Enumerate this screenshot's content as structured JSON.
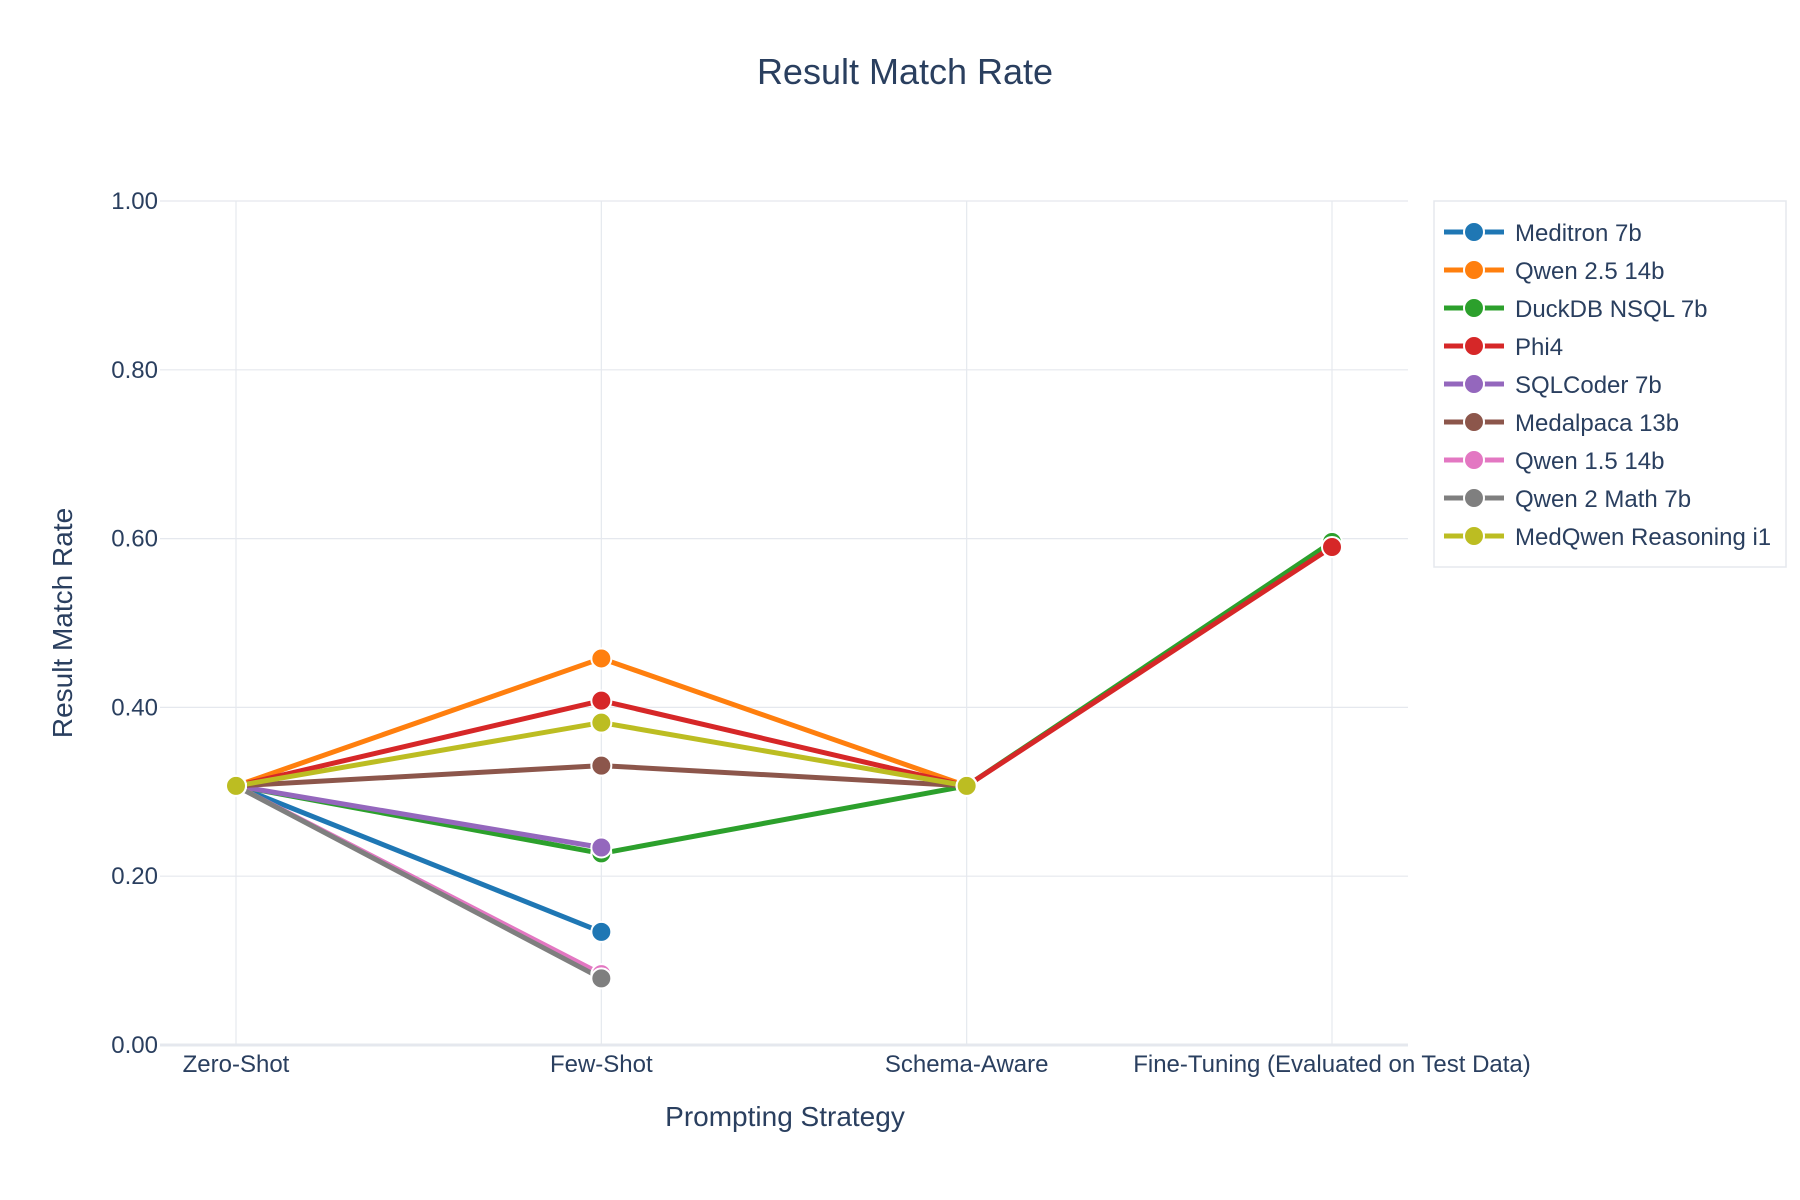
{
  "chart_data": {
    "type": "line",
    "title": "Result Match Rate",
    "xlabel": "Prompting Strategy",
    "ylabel": "Result Match Rate",
    "categories": [
      "Zero-Shot",
      "Few-Shot",
      "Schema-Aware",
      "Fine-Tuning (Evaluated on Test Data)"
    ],
    "ylim": [
      0,
      1
    ],
    "yticks": [
      "0.00",
      "0.20",
      "0.40",
      "0.60",
      "0.80",
      "1.00"
    ],
    "grid": true,
    "legend_position": "top-right",
    "series": [
      {
        "name": "Meditron 7b",
        "color": "#1f77b4",
        "values": [
          0.307,
          0.134,
          null,
          null
        ]
      },
      {
        "name": "Qwen 2.5 14b",
        "color": "#ff7f0e",
        "values": [
          0.307,
          0.458,
          0.307,
          null
        ]
      },
      {
        "name": "DuckDB NSQL 7b",
        "color": "#2ca02c",
        "values": [
          0.307,
          0.227,
          0.307,
          0.596
        ]
      },
      {
        "name": "Phi4",
        "color": "#d62728",
        "values": [
          0.307,
          0.408,
          0.307,
          0.59
        ]
      },
      {
        "name": "SQLCoder 7b",
        "color": "#9467bd",
        "values": [
          0.307,
          0.234,
          null,
          null
        ]
      },
      {
        "name": "Medalpaca 13b",
        "color": "#8c564b",
        "values": [
          0.307,
          0.331,
          0.307,
          null
        ]
      },
      {
        "name": "Qwen 1.5 14b",
        "color": "#e377c2",
        "values": [
          0.307,
          0.084,
          null,
          null
        ]
      },
      {
        "name": "Qwen 2 Math 7b",
        "color": "#7f7f7f",
        "values": [
          0.307,
          0.079,
          null,
          null
        ]
      },
      {
        "name": "MedQwen Reasoning i1",
        "color": "#bcbd22",
        "values": [
          0.307,
          0.382,
          0.307,
          null
        ]
      }
    ]
  }
}
